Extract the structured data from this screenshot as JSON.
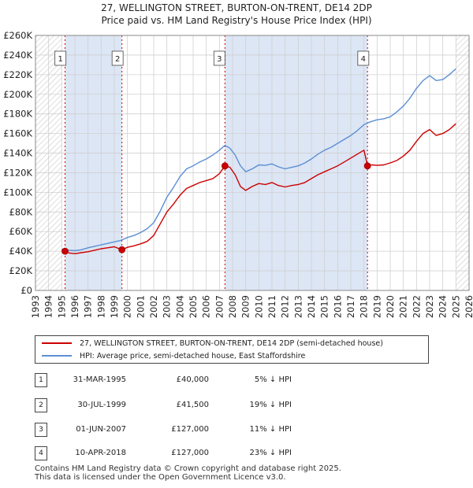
{
  "header": {
    "line1": "27, WELLINGTON STREET, BURTON-ON-TRENT, DE14 2DP",
    "line2": "Price paid vs. HM Land Registry's House Price Index (HPI)"
  },
  "colors": {
    "price": "#cc0000",
    "hpi": "#5b8fd4",
    "shade": "#dce6f5",
    "marker": "#cc0000"
  },
  "chart_data": {
    "type": "line",
    "title": "27, WELLINGTON STREET, BURTON-ON-TRENT, DE14 2DP — Price paid vs. HM Land Registry's House Price Index (HPI)",
    "xlim": [
      1993,
      2026
    ],
    "ylim": [
      0,
      260000
    ],
    "x_ticks": [
      1993,
      1994,
      1995,
      1996,
      1997,
      1998,
      1999,
      2000,
      2001,
      2002,
      2003,
      2004,
      2005,
      2006,
      2007,
      2008,
      2009,
      2010,
      2011,
      2012,
      2013,
      2014,
      2015,
      2016,
      2017,
      2018,
      2019,
      2020,
      2021,
      2022,
      2023,
      2024,
      2025,
      2026
    ],
    "y_ticks": [
      0,
      20000,
      40000,
      60000,
      80000,
      100000,
      120000,
      140000,
      160000,
      180000,
      200000,
      220000,
      240000,
      260000
    ],
    "y_tick_labels": [
      "£0",
      "£20K",
      "£40K",
      "£60K",
      "£80K",
      "£100K",
      "£120K",
      "£140K",
      "£160K",
      "£180K",
      "£200K",
      "£220K",
      "£240K",
      "£260K"
    ],
    "grid": true,
    "shaded_ranges": [
      [
        1995.25,
        1999.58
      ],
      [
        2007.42,
        2018.27
      ]
    ],
    "hatched_ranges": [
      [
        1993,
        1995.0
      ],
      [
        2025.0,
        2026
      ]
    ],
    "series": [
      {
        "name": "27, WELLINGTON STREET, BURTON-ON-TRENT, DE14 2DP (semi-detached house)",
        "color": "#cc0000",
        "x": [
          1995.25,
          1995.6,
          1996.0,
          1996.5,
          1997.0,
          1997.5,
          1998.0,
          1998.5,
          1999.0,
          1999.58,
          2000.0,
          2000.5,
          2001.0,
          2001.5,
          2002.0,
          2002.5,
          2003.0,
          2003.5,
          2004.0,
          2004.5,
          2005.0,
          2005.5,
          2006.0,
          2006.5,
          2007.0,
          2007.42,
          2007.8,
          2008.2,
          2008.6,
          2009.0,
          2009.5,
          2010.0,
          2010.5,
          2011.0,
          2011.5,
          2012.0,
          2012.5,
          2013.0,
          2013.5,
          2014.0,
          2014.5,
          2015.0,
          2015.5,
          2016.0,
          2016.5,
          2017.0,
          2017.5,
          2018.0,
          2018.27,
          2018.6,
          2019.0,
          2019.5,
          2020.0,
          2020.5,
          2021.0,
          2021.5,
          2022.0,
          2022.5,
          2023.0,
          2023.5,
          2024.0,
          2024.5,
          2025.0
        ],
        "values": [
          40000,
          38000,
          37500,
          38500,
          39500,
          41000,
          42500,
          43500,
          44500,
          41500,
          44000,
          45500,
          47500,
          50000,
          56000,
          68000,
          80000,
          88000,
          97000,
          104000,
          107000,
          110000,
          112000,
          114000,
          119000,
          127000,
          125500,
          118000,
          106000,
          102000,
          106000,
          109000,
          108000,
          110000,
          107000,
          105500,
          107000,
          108000,
          110000,
          114000,
          118000,
          121000,
          124000,
          127000,
          131000,
          135000,
          139000,
          143000,
          127000,
          128000,
          127500,
          128000,
          130000,
          132500,
          137000,
          143000,
          152000,
          160000,
          164000,
          158000,
          160000,
          164000,
          170000
        ]
      },
      {
        "name": "HPI: Average price, semi-detached house, East Staffordshire",
        "color": "#5b8fd4",
        "x": [
          1995.0,
          1995.5,
          1996.0,
          1996.5,
          1997.0,
          1997.5,
          1998.0,
          1998.5,
          1999.0,
          1999.5,
          2000.0,
          2000.5,
          2001.0,
          2001.5,
          2002.0,
          2002.5,
          2003.0,
          2003.5,
          2004.0,
          2004.5,
          2005.0,
          2005.5,
          2006.0,
          2006.5,
          2007.0,
          2007.42,
          2007.8,
          2008.2,
          2008.6,
          2009.0,
          2009.5,
          2010.0,
          2010.5,
          2011.0,
          2011.5,
          2012.0,
          2012.5,
          2013.0,
          2013.5,
          2014.0,
          2014.5,
          2015.0,
          2015.5,
          2016.0,
          2016.5,
          2017.0,
          2017.5,
          2018.0,
          2018.5,
          2019.0,
          2019.5,
          2020.0,
          2020.5,
          2021.0,
          2021.5,
          2022.0,
          2022.5,
          2023.0,
          2023.5,
          2024.0,
          2024.5,
          2025.0
        ],
        "values": [
          42000,
          41000,
          40500,
          41500,
          43500,
          45000,
          46500,
          48000,
          49500,
          51000,
          54000,
          56000,
          59000,
          63000,
          69000,
          81000,
          95000,
          105000,
          116000,
          124000,
          127000,
          131000,
          134000,
          138000,
          143000,
          148000,
          145000,
          138000,
          127000,
          121000,
          124000,
          128000,
          127500,
          129000,
          126000,
          124000,
          125500,
          127000,
          130000,
          134000,
          139000,
          143000,
          146000,
          150000,
          154000,
          158000,
          163000,
          169000,
          172000,
          174000,
          175000,
          177000,
          182000,
          188000,
          196000,
          206000,
          214000,
          219000,
          214000,
          215000,
          220000,
          226000
        ]
      }
    ],
    "transactions": [
      {
        "id": "1",
        "x": 1995.25,
        "value": 40000,
        "label_box_x": 1994.9
      },
      {
        "id": "2",
        "x": 1999.58,
        "value": 41500,
        "label_box_x": 1999.25
      },
      {
        "id": "3",
        "x": 2007.42,
        "value": 127000,
        "label_box_x": 2007.0
      },
      {
        "id": "4",
        "x": 2018.27,
        "value": 127000,
        "label_box_x": 2017.95
      }
    ]
  },
  "legend": {
    "price_label": "27, WELLINGTON STREET, BURTON-ON-TRENT, DE14 2DP (semi-detached house)",
    "hpi_label": "HPI: Average price, semi-detached house, East Staffordshire"
  },
  "transactions_table": [
    {
      "num": "1",
      "date": "31-MAR-1995",
      "price": "£40,000",
      "hpi": "5% ↓ HPI"
    },
    {
      "num": "2",
      "date": "30-JUL-1999",
      "price": "£41,500",
      "hpi": "19% ↓ HPI"
    },
    {
      "num": "3",
      "date": "01-JUN-2007",
      "price": "£127,000",
      "hpi": "11% ↓ HPI"
    },
    {
      "num": "4",
      "date": "10-APR-2018",
      "price": "£127,000",
      "hpi": "23% ↓ HPI"
    }
  ],
  "footer": {
    "line1": "Contains HM Land Registry data © Crown copyright and database right 2025.",
    "line2": "This data is licensed under the Open Government Licence v3.0."
  }
}
